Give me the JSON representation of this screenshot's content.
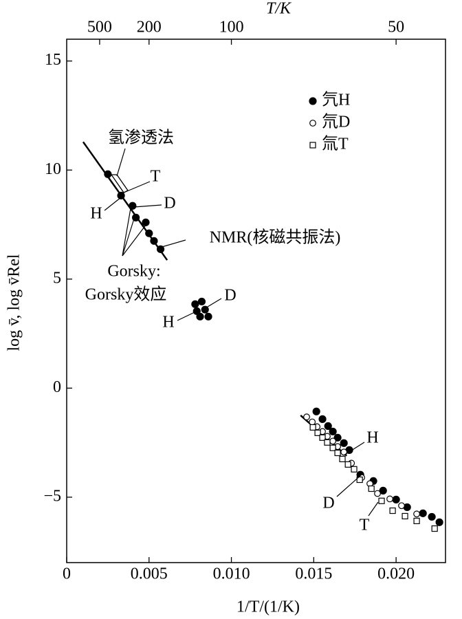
{
  "chart_data": {
    "type": "scatter",
    "xlabel": "1/T/(1/K)",
    "ylabel": "log v̄, log v̄Rel",
    "x2label": "T/K",
    "xlim": [
      0,
      0.023
    ],
    "ylim": [
      -8,
      16
    ],
    "xticks": [
      0,
      0.005,
      {
        "value": 0.01,
        "label": "0.010"
      },
      0.015,
      {
        "value": 0.02,
        "label": "0.020"
      }
    ],
    "yticks": [
      {
        "value": -5,
        "label": "−5"
      },
      0,
      5,
      10,
      15
    ],
    "x2ticks": [
      {
        "value": 0.002,
        "label": "500"
      },
      {
        "value": 0.005,
        "label": "200"
      },
      {
        "value": 0.01,
        "label": "100"
      },
      {
        "value": 0.02,
        "label": "50"
      }
    ],
    "series": [
      {
        "name": "氕H",
        "color": "#000000",
        "marker": "filled-circle",
        "x": [
          0.0025,
          0.0033,
          0.004,
          0.0042,
          0.0048,
          0.005,
          0.0053,
          0.0057,
          0.0078,
          0.0082,
          0.0079,
          0.0084,
          0.0086,
          0.0081,
          0.01516,
          0.01553,
          0.01587,
          0.01616,
          0.01645,
          0.01683,
          0.01716,
          0.01783,
          0.01862,
          0.01921,
          0.02,
          0.02067,
          0.02163,
          0.02217,
          0.02263
        ],
        "values": [
          9.81,
          8.83,
          8.36,
          7.82,
          7.6,
          7.1,
          6.75,
          6.37,
          3.85,
          3.97,
          3.53,
          3.6,
          3.28,
          3.28,
          -1.07,
          -1.42,
          -1.74,
          -1.99,
          -2.27,
          -2.52,
          -2.84,
          -3.97,
          -4.26,
          -4.7,
          -5.11,
          -5.46,
          -5.74,
          -5.9,
          -6.15
        ]
      },
      {
        "name": "氘D",
        "color": "#000000",
        "marker": "open-circle",
        "x": [
          0.01457,
          0.01491,
          0.0152,
          0.01553,
          0.01582,
          0.01616,
          0.01645,
          0.01683,
          0.01729,
          0.01791,
          0.01841,
          0.01887,
          0.01962,
          0.02033,
          0.02125
        ],
        "values": [
          -1.32,
          -1.55,
          -1.77,
          -1.99,
          -2.21,
          -2.43,
          -2.68,
          -2.93,
          -3.44,
          -4.1,
          -4.38,
          -4.83,
          -5.08,
          -5.39,
          -5.77
        ]
      },
      {
        "name": "氚T",
        "color": "#000000",
        "marker": "open-square",
        "x": [
          0.01495,
          0.01524,
          0.01553,
          0.01582,
          0.01616,
          0.01645,
          0.01674,
          0.01708,
          0.01745,
          0.01779,
          0.0185,
          0.01912,
          0.01979,
          0.02054,
          0.02125,
          0.02234
        ],
        "values": [
          -1.8,
          -2.05,
          -2.27,
          -2.49,
          -2.74,
          -2.97,
          -3.25,
          -3.5,
          -3.72,
          -4.2,
          -4.61,
          -5.17,
          -5.62,
          -5.87,
          -6.09,
          -6.44
        ]
      }
    ],
    "lines": [
      {
        "x": [
          0.001,
          0.0061
        ],
        "y": [
          11.29,
          5.87
        ]
      },
      {
        "x": [
          0.0142,
          0.017
        ],
        "y": [
          -1.25,
          -3.1
        ]
      }
    ],
    "annotations": [
      "氢渗透法",
      "T",
      "D",
      "H",
      "NMR(核磁共振法)",
      "Gorsky:",
      "Gorsky效应",
      "H",
      "D",
      "H",
      "D",
      "T"
    ]
  }
}
